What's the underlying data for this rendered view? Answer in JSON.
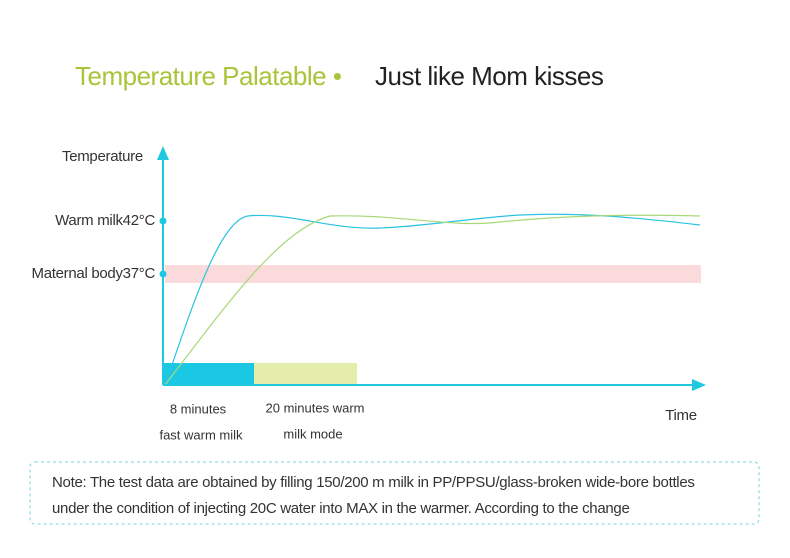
{
  "title": {
    "highlight": "Temperature Palatable •",
    "tagline": "Just like Mom kisses"
  },
  "diagram": {
    "y_axis_label": "Temperature",
    "x_axis_label": "Time",
    "levels": [
      "Warm milk42°C",
      "Maternal body37°C"
    ],
    "phases": [
      {
        "line1": "8 minutes",
        "line2": "fast warm milk"
      },
      {
        "line1": "20 minutes warm",
        "line2": "milk mode"
      }
    ]
  },
  "note": {
    "lines": [
      "Note: The test data are obtained by filling 150/200 m milk in PP/PPSU/glass-broken wide-bore bottles",
      "under the condition of injecting 20C water into MAX in the warmer. According to the change"
    ]
  }
}
